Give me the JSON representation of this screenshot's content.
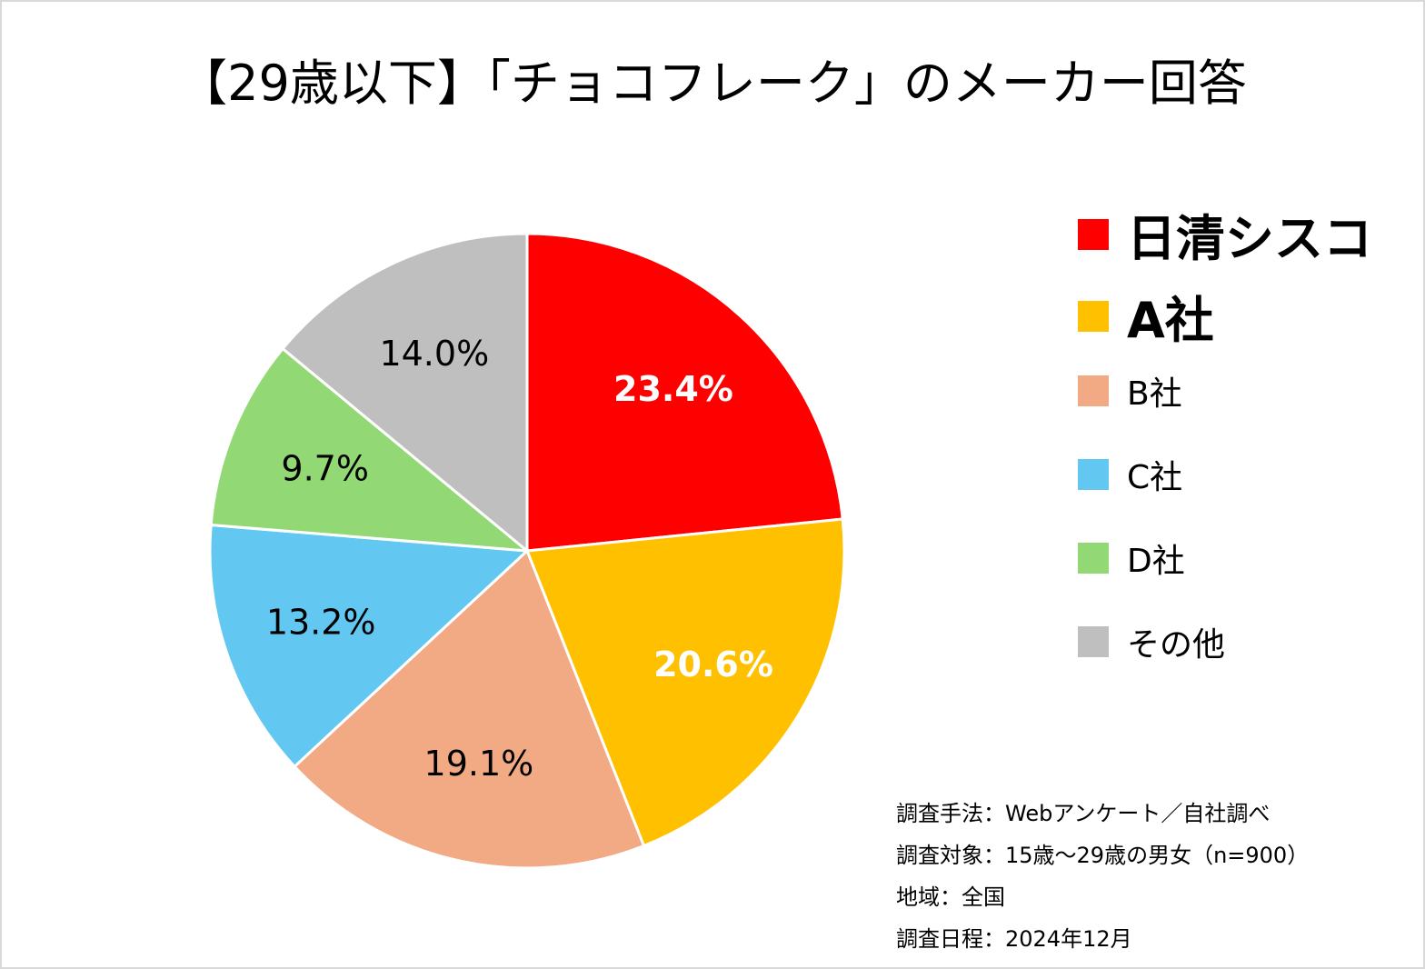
{
  "title": "【29歳以下】「チョコフレーク」のメーカー回答",
  "chart_data": {
    "type": "pie",
    "title": "【29歳以下】「チョコフレーク」のメーカー回答",
    "start_angle_deg": 0,
    "direction": "clockwise",
    "slices": [
      {
        "name": "日清シスコ",
        "value": 23.4,
        "label": "23.4%",
        "color": "#ff0000",
        "label_color": "#ffffff",
        "bold": true
      },
      {
        "name": "A社",
        "value": 20.6,
        "label": "20.6%",
        "color": "#ffc000",
        "label_color": "#ffffff",
        "bold": true
      },
      {
        "name": "B社",
        "value": 19.1,
        "label": "19.1%",
        "color": "#f2aa84",
        "label_color": "#000000",
        "bold": false
      },
      {
        "name": "C社",
        "value": 13.2,
        "label": "13.2%",
        "color": "#62c8f2",
        "label_color": "#000000",
        "bold": false
      },
      {
        "name": "D社",
        "value": 9.7,
        "label": "9.7%",
        "color": "#92d975",
        "label_color": "#000000",
        "bold": false
      },
      {
        "name": "その他",
        "value": 14.0,
        "label": "14.0%",
        "color": "#bfbfbf",
        "label_color": "#000000",
        "bold": false
      }
    ],
    "legend_position": "right"
  },
  "notes": [
    "調査手法：Webアンケート／自社調べ",
    "調査対象：15歳～29歳の男女（n=900）",
    "地域：全国",
    "調査日程：2024年12月"
  ]
}
